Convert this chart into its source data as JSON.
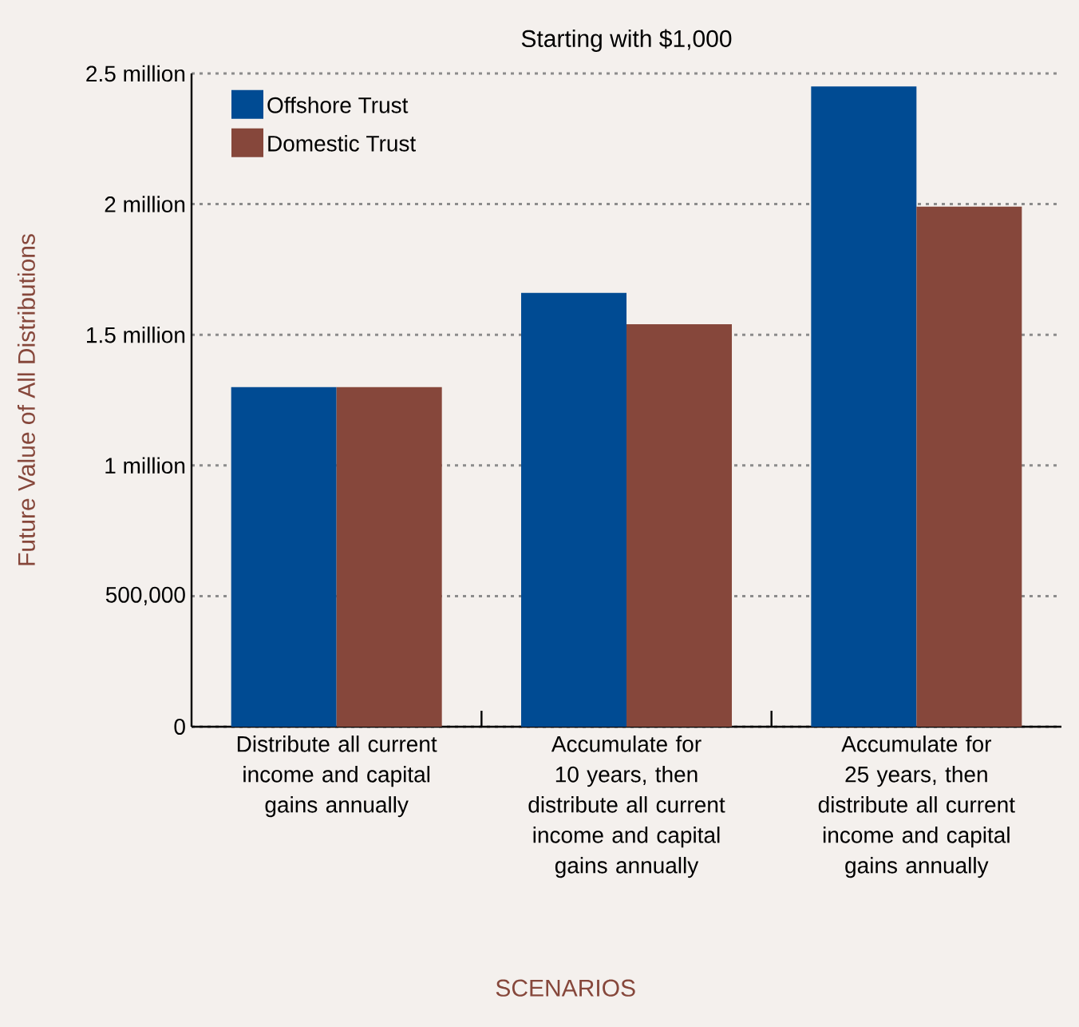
{
  "chart_data": {
    "type": "bar",
    "title": "Starting with $1,000",
    "xlabel": "SCENARIOS",
    "ylabel": "Future Value of All Distributions",
    "categories": [
      "Distribute all current income and capital gains annually",
      "Accumulate for 10 years, then distribute all current income and capital gains annually",
      "Accumulate for 25 years, then distribute all current income and capital gains annually"
    ],
    "series": [
      {
        "name": "Offshore Trust",
        "color": "#004b93",
        "values": [
          1300000,
          1660000,
          2450000
        ]
      },
      {
        "name": "Domestic Trust",
        "color": "#86473b",
        "values": [
          1300000,
          1540000,
          1990000
        ]
      }
    ],
    "ylim": [
      0,
      2500000
    ],
    "yticks": [
      0,
      {
        "value": 500000,
        "label": "500,000"
      },
      {
        "value": 1000000,
        "label": "1 million"
      },
      {
        "value": 1500000,
        "label": "1.5 million"
      },
      {
        "value": 2000000,
        "label": "2 million"
      },
      {
        "value": 2500000,
        "label": "2.5 million"
      }
    ],
    "grid": "y",
    "legend": "top left"
  }
}
